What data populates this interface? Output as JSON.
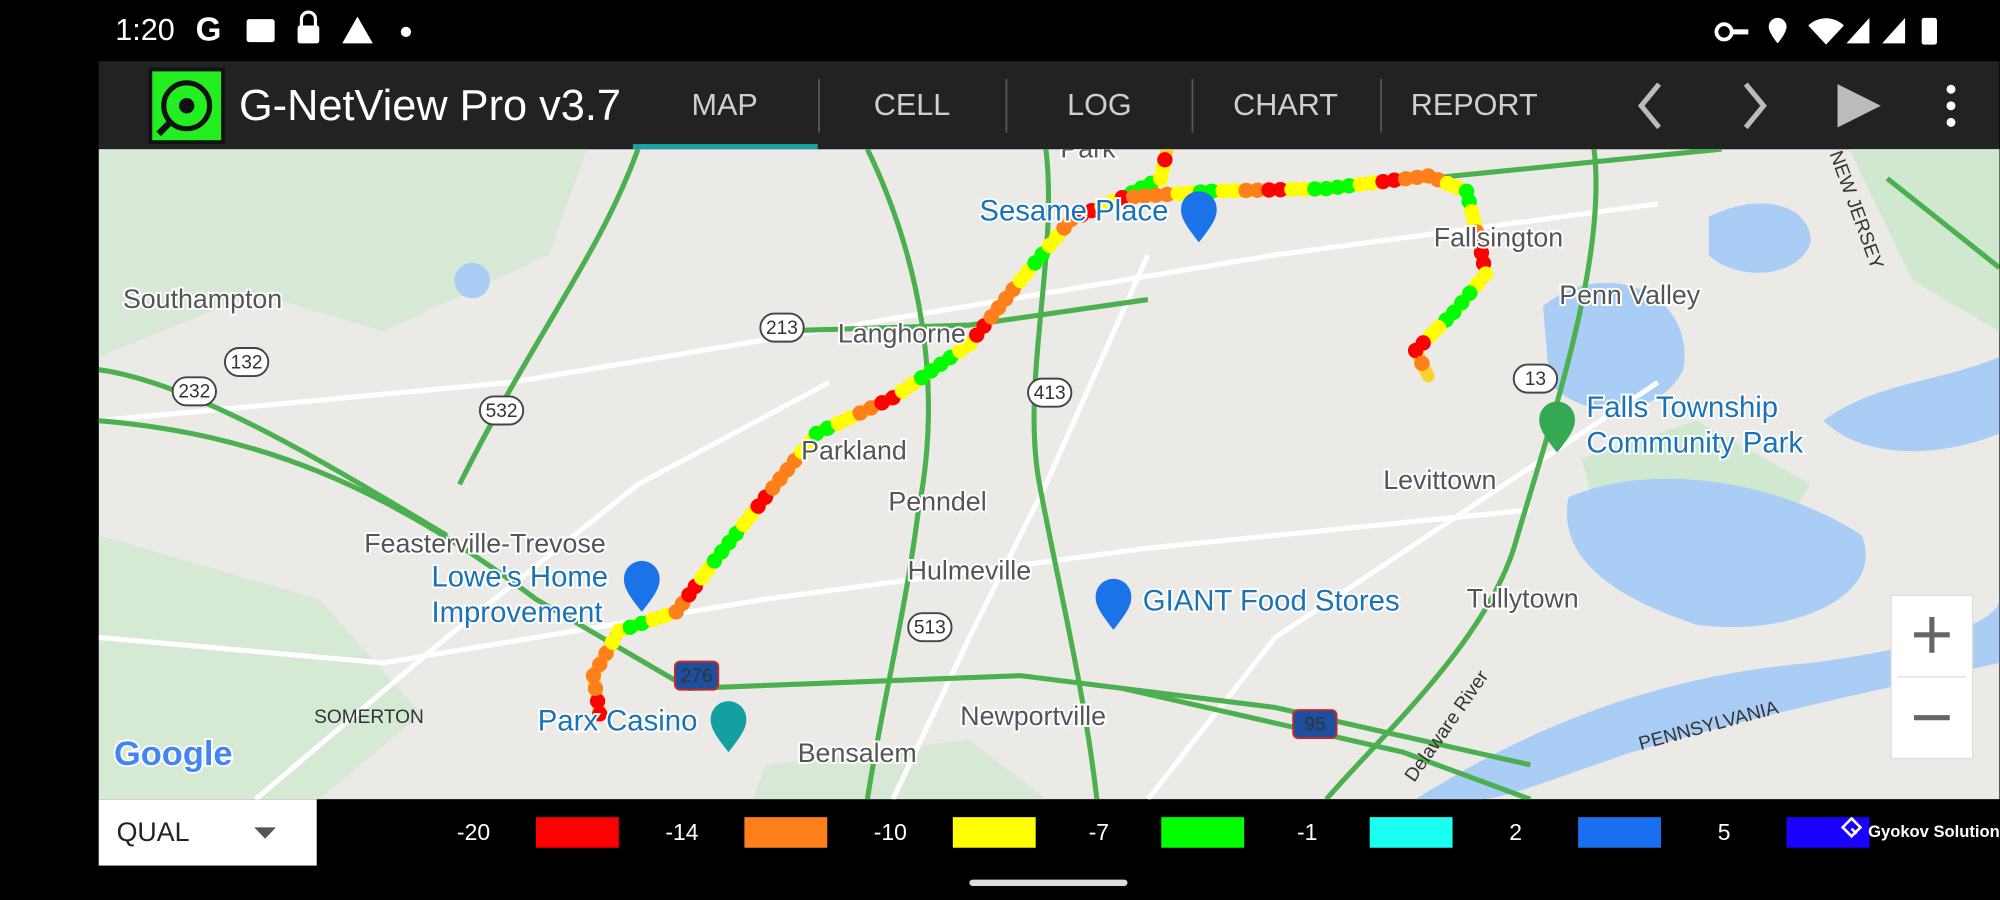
{
  "status_bar": {
    "time": "1:20"
  },
  "app_bar": {
    "title": "G-NetView Pro v3.7",
    "tabs": [
      "MAP",
      "CELL",
      "LOG",
      "CHART",
      "REPORT"
    ]
  },
  "map": {
    "labels": [
      "Park",
      "Sesame Place",
      "Fallsington",
      "Southampton",
      "Penn Valley",
      "Langhorne",
      "Falls Township",
      "Community Park",
      "Parkland",
      "Levittown",
      "Penndel",
      "Feasterville-Trevose",
      "Lowe's Home",
      "Improvement",
      "Hulmeville",
      "GIANT Food Stores",
      "Tullytown",
      "SOMERTON",
      "Parx Casino",
      "Newportville",
      "Bensalem",
      "PENNSYLVANIA",
      "NEW JERSEY",
      "Delaware River"
    ],
    "shields": [
      "213",
      "132",
      "232",
      "532",
      "413",
      "13",
      "513",
      "276",
      "95"
    ],
    "logo": "Google"
  },
  "bottom_bar": {
    "selector": "QUAL",
    "legend": [
      {
        "label": "-20",
        "color": "#ff0000"
      },
      {
        "label": "-14",
        "color": "#ff7f1a"
      },
      {
        "label": "-10",
        "color": "#ffff00"
      },
      {
        "label": "-7",
        "color": "#00ff00"
      },
      {
        "label": "-1",
        "color": "#1afff0"
      },
      {
        "label": "2",
        "color": "#1a6ff0"
      },
      {
        "label": "5",
        "color": "#1a00ff"
      }
    ],
    "brand": "Gyokov Solutions"
  }
}
